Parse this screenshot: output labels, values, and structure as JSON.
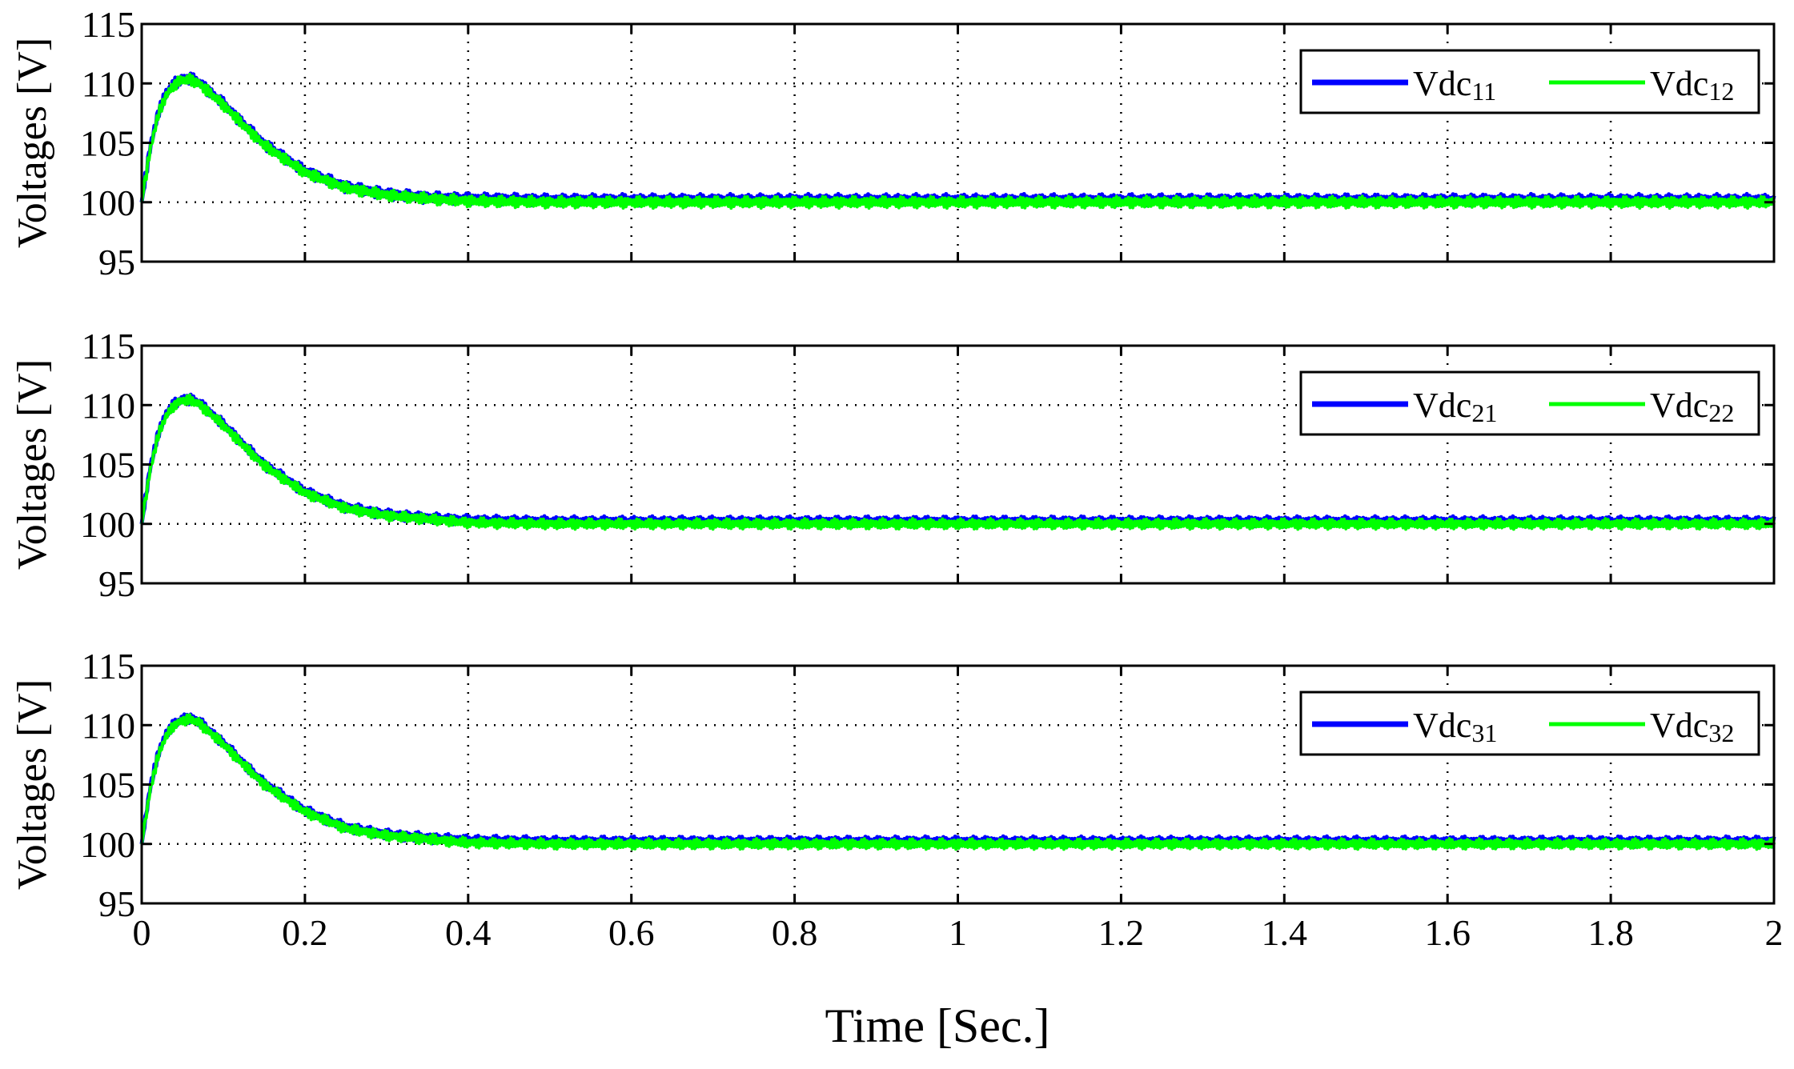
{
  "chart_data": {
    "type": "line",
    "xlabel": "Time [Sec.]",
    "xlim": [
      0,
      2
    ],
    "xticks": [
      0,
      0.2,
      0.4,
      0.6,
      0.8,
      1,
      1.2,
      1.4,
      1.6,
      1.8,
      2
    ],
    "xtick_labels": [
      "0",
      "0.2",
      "0.4",
      "0.6",
      "0.8",
      "1",
      "1.2",
      "1.4",
      "1.6",
      "1.8",
      "2"
    ],
    "grid": true,
    "legend_position": "top-right",
    "colors": {
      "series_a": "#0000ff",
      "series_b": "#00ff00",
      "axes": "#000000",
      "grid": "#000000"
    },
    "panels": [
      {
        "ylabel": "Voltages [V]",
        "ylim": [
          95,
          115
        ],
        "yticks": [
          95,
          100,
          105,
          110,
          115
        ],
        "series": [
          {
            "name": "Vdc",
            "sub": "11",
            "color": "#0000ff",
            "ripple": 0.5,
            "x": [
              0,
              0.01,
              0.02,
              0.03,
              0.04,
              0.05,
              0.06,
              0.07,
              0.08,
              0.1,
              0.12,
              0.15,
              0.2,
              0.25,
              0.3,
              0.35,
              0.4,
              0.5,
              0.6,
              0.8,
              1.0,
              1.2,
              1.4,
              1.6,
              1.8,
              2.0
            ],
            "y": [
              100,
              104.5,
              107.5,
              109.2,
              110.0,
              110.4,
              110.4,
              110.1,
              109.5,
              108.3,
              106.9,
              104.9,
              102.6,
              101.3,
              100.7,
              100.4,
              100.3,
              100.2,
              100.2,
              100.2,
              100.2,
              100.2,
              100.2,
              100.2,
              100.2,
              100.2
            ]
          },
          {
            "name": "Vdc",
            "sub": "12",
            "color": "#00ff00",
            "ripple": 0.5,
            "x": [
              0,
              0.01,
              0.02,
              0.03,
              0.04,
              0.05,
              0.06,
              0.07,
              0.08,
              0.1,
              0.12,
              0.15,
              0.2,
              0.25,
              0.3,
              0.35,
              0.4,
              0.5,
              0.6,
              0.8,
              1.0,
              1.2,
              1.4,
              1.6,
              1.8,
              2.0
            ],
            "y": [
              100,
              104.3,
              107.3,
              109.0,
              109.9,
              110.3,
              110.3,
              110.0,
              109.4,
              108.2,
              106.8,
              104.8,
              102.5,
              101.2,
              100.6,
              100.3,
              100.1,
              100.0,
              100.0,
              100.0,
              100.0,
              100.0,
              100.0,
              100.0,
              100.0,
              100.0
            ]
          }
        ]
      },
      {
        "ylabel": "Voltages [V]",
        "ylim": [
          95,
          115
        ],
        "yticks": [
          95,
          100,
          105,
          110,
          115
        ],
        "series": [
          {
            "name": "Vdc",
            "sub": "21",
            "color": "#0000ff",
            "ripple": 0.45,
            "x": [
              0,
              0.01,
              0.02,
              0.03,
              0.04,
              0.05,
              0.06,
              0.07,
              0.08,
              0.1,
              0.12,
              0.15,
              0.2,
              0.25,
              0.3,
              0.35,
              0.4,
              0.5,
              0.6,
              0.8,
              1.0,
              1.2,
              1.4,
              1.6,
              1.8,
              2.0
            ],
            "y": [
              100,
              104.6,
              107.6,
              109.3,
              110.1,
              110.5,
              110.5,
              110.2,
              109.6,
              108.4,
              107.0,
              105.0,
              102.7,
              101.4,
              100.8,
              100.5,
              100.3,
              100.2,
              100.2,
              100.2,
              100.2,
              100.2,
              100.2,
              100.2,
              100.2,
              100.2
            ]
          },
          {
            "name": "Vdc",
            "sub": "22",
            "color": "#00ff00",
            "ripple": 0.45,
            "x": [
              0,
              0.01,
              0.02,
              0.03,
              0.04,
              0.05,
              0.06,
              0.07,
              0.08,
              0.1,
              0.12,
              0.15,
              0.2,
              0.25,
              0.3,
              0.35,
              0.4,
              0.5,
              0.6,
              0.8,
              1.0,
              1.2,
              1.4,
              1.6,
              1.8,
              2.0
            ],
            "y": [
              100,
              104.4,
              107.4,
              109.1,
              110.0,
              110.4,
              110.4,
              110.1,
              109.5,
              108.3,
              106.9,
              104.9,
              102.6,
              101.3,
              100.7,
              100.4,
              100.1,
              100.0,
              100.0,
              100.0,
              100.0,
              100.0,
              100.0,
              100.0,
              100.0,
              100.0
            ]
          }
        ]
      },
      {
        "ylabel": "Voltages [V]",
        "ylim": [
          95,
          115
        ],
        "yticks": [
          95,
          100,
          105,
          110,
          115
        ],
        "series": [
          {
            "name": "Vdc",
            "sub": "31",
            "color": "#0000ff",
            "ripple": 0.45,
            "x": [
              0,
              0.01,
              0.02,
              0.03,
              0.04,
              0.05,
              0.06,
              0.07,
              0.08,
              0.1,
              0.12,
              0.15,
              0.2,
              0.25,
              0.3,
              0.35,
              0.4,
              0.5,
              0.6,
              0.8,
              1.0,
              1.2,
              1.4,
              1.6,
              1.8,
              2.0
            ],
            "y": [
              100,
              104.6,
              107.6,
              109.3,
              110.1,
              110.5,
              110.6,
              110.3,
              109.7,
              108.5,
              107.1,
              105.1,
              102.8,
              101.4,
              100.8,
              100.5,
              100.3,
              100.2,
              100.2,
              100.2,
              100.2,
              100.2,
              100.2,
              100.2,
              100.2,
              100.2
            ]
          },
          {
            "name": "Vdc",
            "sub": "32",
            "color": "#00ff00",
            "ripple": 0.45,
            "x": [
              0,
              0.01,
              0.02,
              0.03,
              0.04,
              0.05,
              0.06,
              0.07,
              0.08,
              0.1,
              0.12,
              0.15,
              0.2,
              0.25,
              0.3,
              0.35,
              0.4,
              0.5,
              0.6,
              0.8,
              1.0,
              1.2,
              1.4,
              1.6,
              1.8,
              2.0
            ],
            "y": [
              100,
              104.4,
              107.4,
              109.1,
              110.0,
              110.4,
              110.5,
              110.2,
              109.6,
              108.4,
              107.0,
              105.0,
              102.7,
              101.3,
              100.7,
              100.4,
              100.1,
              100.0,
              100.0,
              100.0,
              100.0,
              100.0,
              100.0,
              100.0,
              100.0,
              100.0
            ]
          }
        ]
      }
    ]
  }
}
